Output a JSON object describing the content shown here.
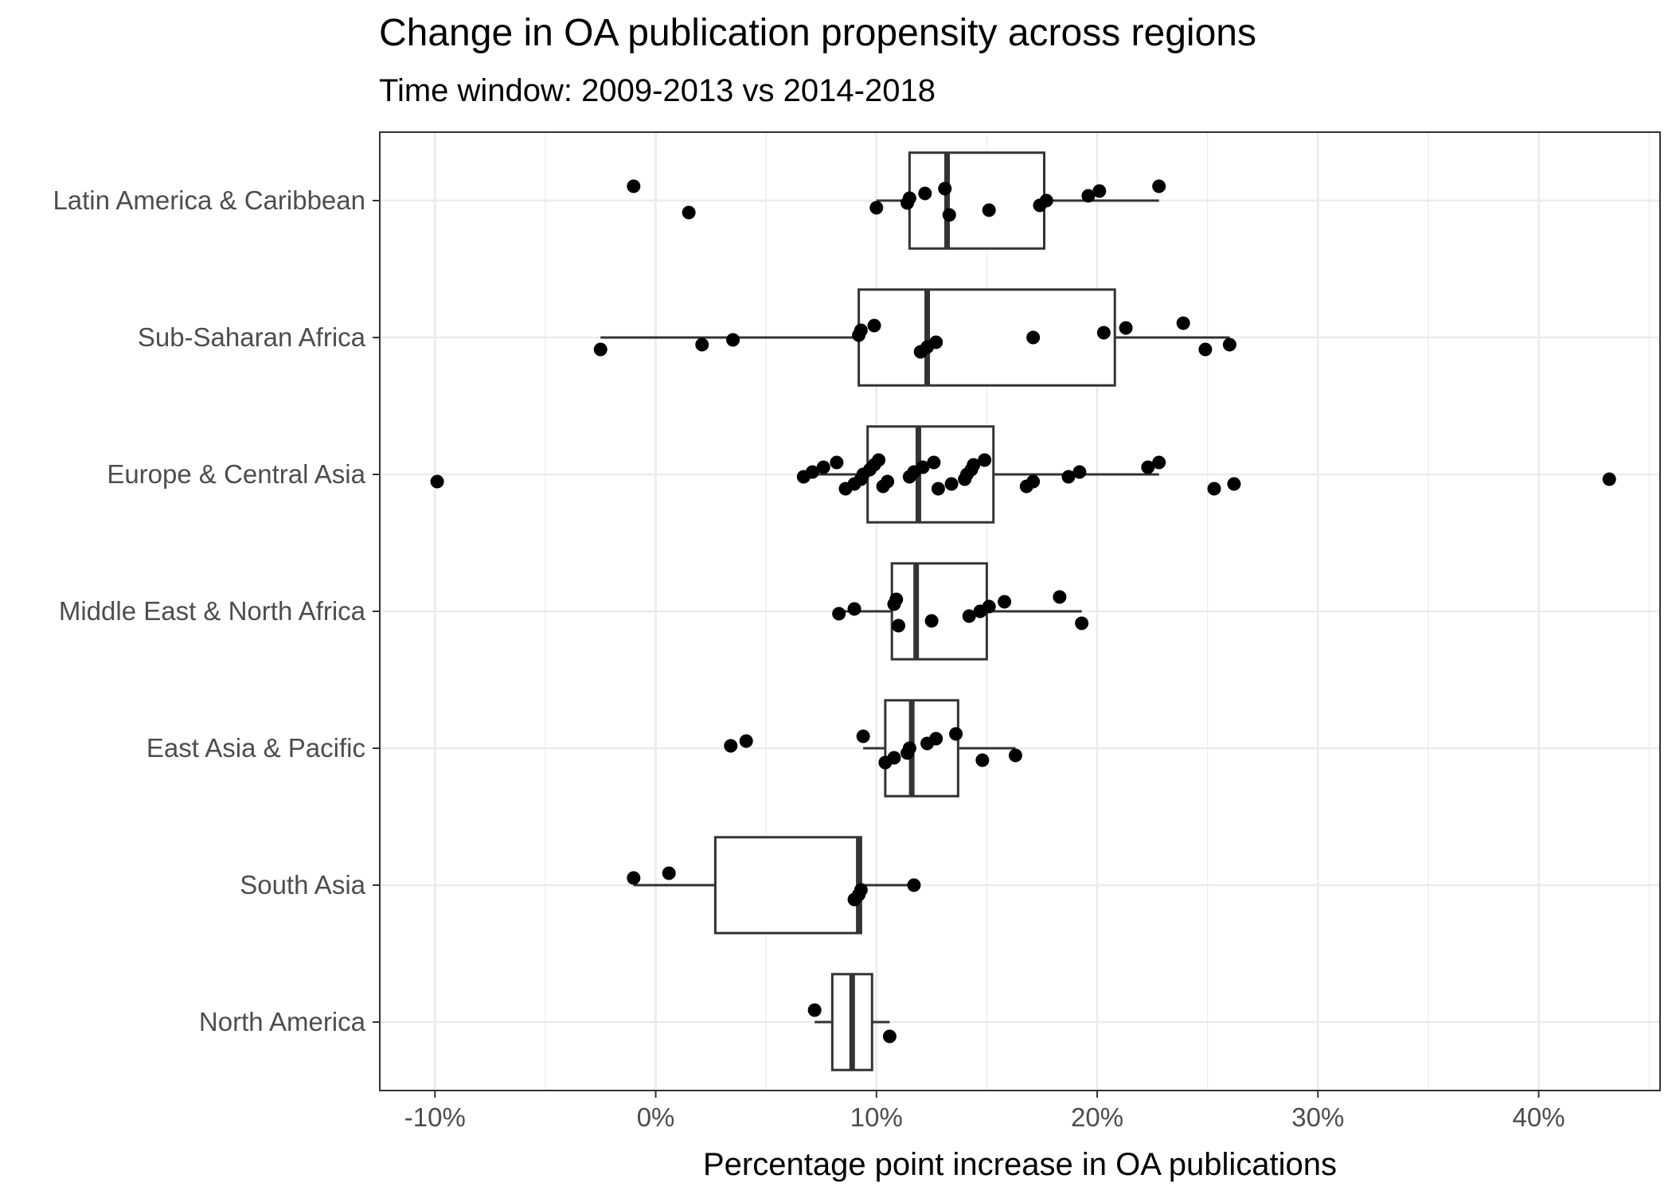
{
  "chart_data": {
    "type": "box",
    "title": "Change in OA publication propensity across regions",
    "subtitle": "Time window: 2009-2013 vs 2014-2018",
    "xlabel": "Percentage point increase in OA publications",
    "ylabel": "",
    "xlim": [
      -12.5,
      45.5
    ],
    "x_ticks": [
      -10,
      0,
      10,
      20,
      30,
      40
    ],
    "x_tick_labels": [
      "-10%",
      "0%",
      "10%",
      "20%",
      "30%",
      "40%"
    ],
    "grid": true,
    "colors": {
      "box": "#333333",
      "point": "#000000",
      "grid": "#ebebeb",
      "border": "#333333"
    },
    "categories": [
      "Latin America & Caribbean",
      "Sub-Saharan Africa",
      "Europe & Central Asia",
      "Middle East & North Africa",
      "East Asia & Pacific",
      "South Asia",
      "North America"
    ],
    "boxes": [
      {
        "category": "Latin America & Caribbean",
        "whisker_low": 10.0,
        "q1": 11.5,
        "median": 13.2,
        "q3": 17.6,
        "whisker_high": 22.8
      },
      {
        "category": "Sub-Saharan Africa",
        "whisker_low": -2.5,
        "q1": 9.2,
        "median": 12.3,
        "q3": 20.8,
        "whisker_high": 26.0
      },
      {
        "category": "Europe & Central Asia",
        "whisker_low": 6.7,
        "q1": 9.6,
        "median": 11.9,
        "q3": 15.3,
        "whisker_high": 22.8
      },
      {
        "category": "Middle East & North Africa",
        "whisker_low": 8.3,
        "q1": 10.7,
        "median": 11.8,
        "q3": 15.0,
        "whisker_high": 19.3
      },
      {
        "category": "East Asia & Pacific",
        "whisker_low": 9.4,
        "q1": 10.4,
        "median": 11.6,
        "q3": 13.7,
        "whisker_high": 16.3
      },
      {
        "category": "South Asia",
        "whisker_low": -1.0,
        "q1": 2.7,
        "median": 9.2,
        "q3": 9.3,
        "whisker_high": 11.7
      },
      {
        "category": "North America",
        "whisker_low": 7.2,
        "q1": 8.0,
        "median": 8.9,
        "q3": 9.8,
        "whisker_high": 10.6
      }
    ],
    "points": [
      {
        "category": "Latin America & Caribbean",
        "values": [
          -1.0,
          1.5,
          10.0,
          11.4,
          11.5,
          12.2,
          13.1,
          13.3,
          15.1,
          17.4,
          17.7,
          19.6,
          20.1,
          22.8
        ]
      },
      {
        "category": "Sub-Saharan Africa",
        "values": [
          -2.5,
          2.1,
          3.5,
          9.2,
          9.3,
          9.9,
          12.0,
          12.3,
          12.7,
          17.1,
          20.3,
          21.3,
          23.9,
          24.9,
          26.0
        ]
      },
      {
        "category": "Europe & Central Asia",
        "values": [
          -9.9,
          6.7,
          7.1,
          7.6,
          8.2,
          8.6,
          9.0,
          9.3,
          9.4,
          9.7,
          9.9,
          10.1,
          10.3,
          10.5,
          11.5,
          11.7,
          12.1,
          12.6,
          12.8,
          13.4,
          14.0,
          14.1,
          14.3,
          14.4,
          14.9,
          16.8,
          17.1,
          18.7,
          19.2,
          22.3,
          22.8,
          25.3,
          26.2,
          43.2
        ]
      },
      {
        "category": "Middle East & North Africa",
        "values": [
          8.3,
          9.0,
          10.8,
          10.9,
          11.0,
          12.5,
          14.2,
          14.7,
          15.1,
          15.8,
          18.3,
          19.3
        ]
      },
      {
        "category": "East Asia & Pacific",
        "values": [
          3.4,
          4.1,
          9.4,
          10.4,
          10.8,
          11.4,
          11.5,
          12.3,
          12.7,
          13.6,
          14.8,
          16.3
        ]
      },
      {
        "category": "South Asia",
        "values": [
          -1.0,
          0.6,
          9.0,
          9.2,
          9.3,
          11.7
        ]
      },
      {
        "category": "North America",
        "values": [
          7.2,
          10.6
        ]
      }
    ]
  }
}
